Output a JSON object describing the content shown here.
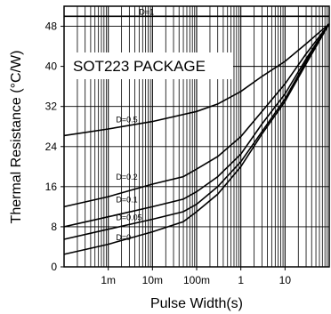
{
  "chart_data": {
    "type": "line",
    "xlabel": "Pulse Width(s)",
    "ylabel": "Thermal Resistance (°C/W)",
    "annotation": "SOT223 PACKAGE",
    "x_scale": "log",
    "xlim": [
      0.0001,
      100
    ],
    "ylim": [
      0,
      52
    ],
    "x_ticks": [
      {
        "value": 0.001,
        "label": "1m"
      },
      {
        "value": 0.01,
        "label": "10m"
      },
      {
        "value": 0.1,
        "label": "100m"
      },
      {
        "value": 1,
        "label": "1"
      },
      {
        "value": 10,
        "label": "10"
      }
    ],
    "y_ticks": [
      0,
      8,
      16,
      24,
      32,
      40,
      48
    ],
    "grid": true,
    "series": [
      {
        "name": "D=1",
        "label_at": [
          0.005,
          50.0
        ],
        "points": [
          [
            0.0001,
            50
          ],
          [
            100,
            50
          ]
        ]
      },
      {
        "name": "D=0.5",
        "label_at": [
          0.0015,
          28.5
        ],
        "points": [
          [
            0.0001,
            26.2
          ],
          [
            0.001,
            27.5
          ],
          [
            0.01,
            29.0
          ],
          [
            0.1,
            31.0
          ],
          [
            0.3,
            32.5
          ],
          [
            1,
            35.0
          ],
          [
            3,
            38.0
          ],
          [
            10,
            41.0
          ],
          [
            30,
            44.5
          ],
          [
            100,
            48.5
          ]
        ]
      },
      {
        "name": "D=0.2",
        "label_at": [
          0.0015,
          17.0
        ],
        "points": [
          [
            0.0001,
            12.0
          ],
          [
            0.001,
            14.0
          ],
          [
            0.01,
            16.5
          ],
          [
            0.05,
            18.0
          ],
          [
            0.1,
            19.5
          ],
          [
            0.3,
            22.0
          ],
          [
            1,
            26.0
          ],
          [
            3,
            31.0
          ],
          [
            10,
            36.5
          ],
          [
            30,
            42.5
          ],
          [
            100,
            48.5
          ]
        ]
      },
      {
        "name": "D=0.1",
        "label_at": [
          0.0015,
          12.5
        ],
        "points": [
          [
            0.0001,
            8.0
          ],
          [
            0.001,
            10.0
          ],
          [
            0.01,
            12.0
          ],
          [
            0.05,
            13.5
          ],
          [
            0.1,
            15.0
          ],
          [
            0.3,
            18.0
          ],
          [
            1,
            22.5
          ],
          [
            3,
            28.5
          ],
          [
            10,
            34.5
          ],
          [
            30,
            41.5
          ],
          [
            100,
            48.5
          ]
        ]
      },
      {
        "name": "D=0.05",
        "label_at": [
          0.0015,
          9.0
        ],
        "points": [
          [
            0.0001,
            5.5
          ],
          [
            0.001,
            7.5
          ],
          [
            0.01,
            9.5
          ],
          [
            0.05,
            11.0
          ],
          [
            0.1,
            12.5
          ],
          [
            0.3,
            16.0
          ],
          [
            1,
            21.0
          ],
          [
            3,
            27.0
          ],
          [
            10,
            33.5
          ],
          [
            30,
            41.0
          ],
          [
            100,
            48.5
          ]
        ]
      },
      {
        "name": "D=0",
        "label_at": [
          0.0015,
          5.0
        ],
        "points": [
          [
            0.0001,
            2.5
          ],
          [
            0.001,
            4.5
          ],
          [
            0.01,
            7.0
          ],
          [
            0.05,
            9.0
          ],
          [
            0.1,
            11.0
          ],
          [
            0.3,
            14.5
          ],
          [
            1,
            20.0
          ],
          [
            3,
            26.5
          ],
          [
            10,
            33.0
          ],
          [
            30,
            40.5
          ],
          [
            100,
            48.5
          ]
        ]
      }
    ]
  }
}
